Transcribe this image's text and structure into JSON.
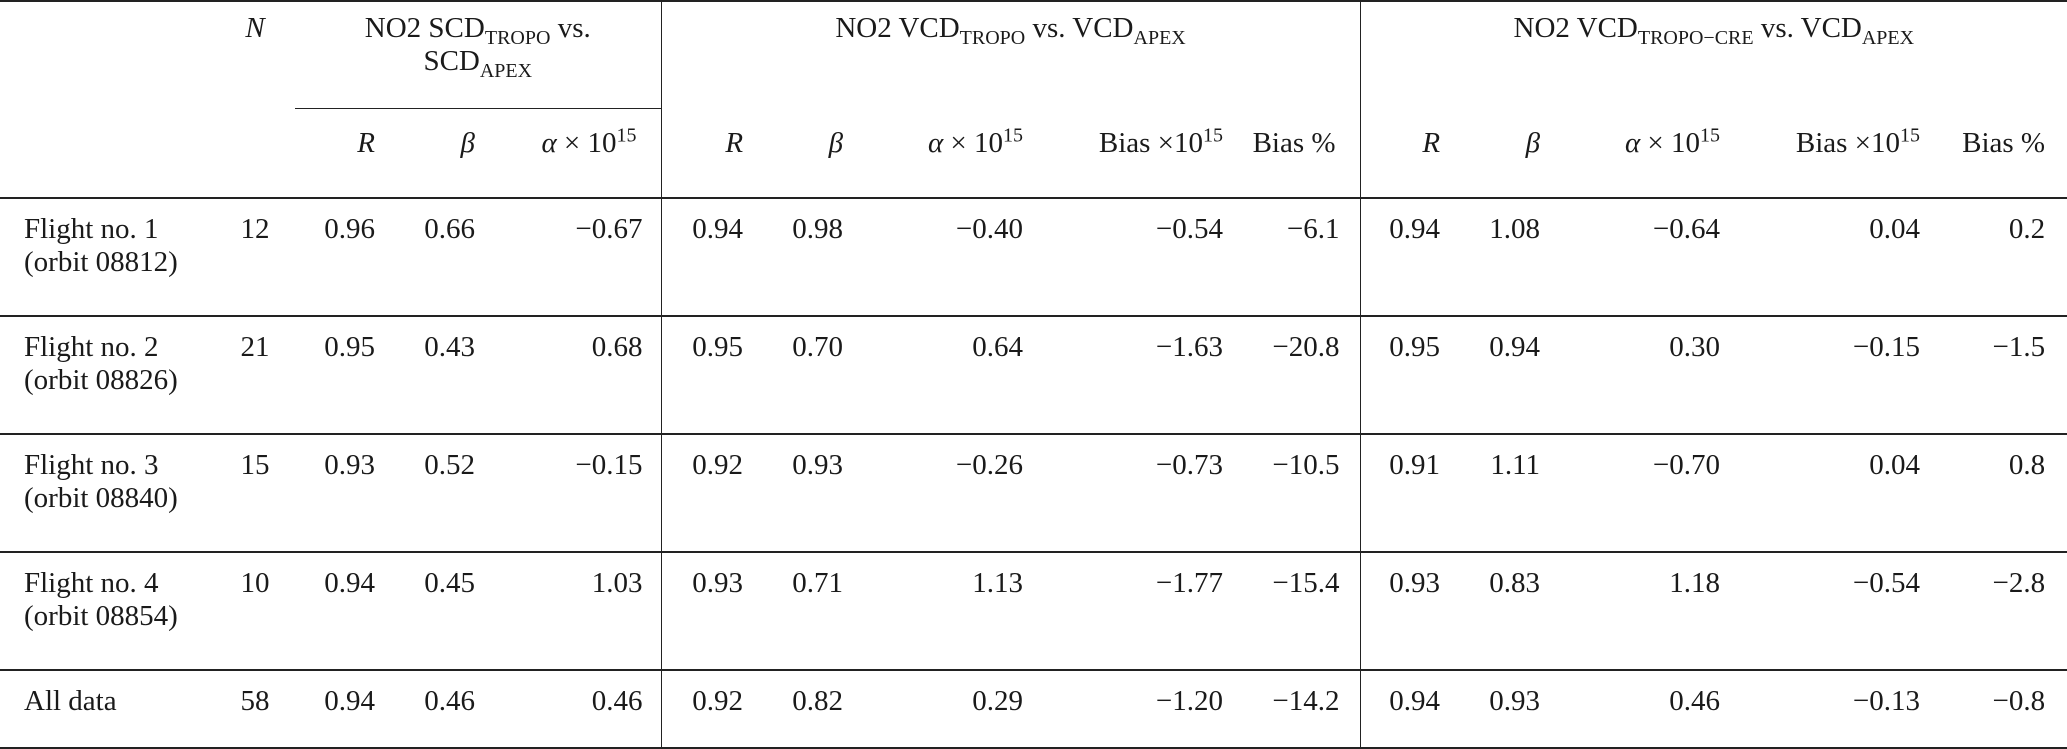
{
  "headers": {
    "n": "N",
    "group1_a": "NO2 SCD",
    "group1_b": "TROPO",
    "group1_c": " vs.",
    "group1_d": "SCD",
    "group1_e": "APEX",
    "group2_a": "NO2 VCD",
    "group2_b": "TROPO",
    "group2_c": " vs. VCD",
    "group2_d": "APEX",
    "group3_a": "NO2 VCD",
    "group3_b": "TROPO−CRE",
    "group3_c": " vs. VCD",
    "group3_d": "APEX",
    "R": "R",
    "beta": "β",
    "alpha": "α × 10",
    "exp": "15",
    "bias": "Bias ×10",
    "biaspct": "Bias %"
  },
  "rows": [
    {
      "label1": "Flight no. 1",
      "label2": "(orbit 08812)",
      "n": "12",
      "g1": [
        "0.96",
        "0.66",
        "−0.67"
      ],
      "g2": [
        "0.94",
        "0.98",
        "−0.40",
        "−0.54",
        "−6.1"
      ],
      "g3": [
        "0.94",
        "1.08",
        "−0.64",
        "0.04",
        "0.2"
      ]
    },
    {
      "label1": "Flight no. 2",
      "label2": "(orbit 08826)",
      "n": "21",
      "g1": [
        "0.95",
        "0.43",
        "0.68"
      ],
      "g2": [
        "0.95",
        "0.70",
        "0.64",
        "−1.63",
        "−20.8"
      ],
      "g3": [
        "0.95",
        "0.94",
        "0.30",
        "−0.15",
        "−1.5"
      ]
    },
    {
      "label1": "Flight no. 3",
      "label2": "(orbit 08840)",
      "n": "15",
      "g1": [
        "0.93",
        "0.52",
        "−0.15"
      ],
      "g2": [
        "0.92",
        "0.93",
        "−0.26",
        "−0.73",
        "−10.5"
      ],
      "g3": [
        "0.91",
        "1.11",
        "−0.70",
        "0.04",
        "0.8"
      ]
    },
    {
      "label1": "Flight no. 4",
      "label2": "(orbit 08854)",
      "n": "10",
      "g1": [
        "0.94",
        "0.45",
        "1.03"
      ],
      "g2": [
        "0.93",
        "0.71",
        "1.13",
        "−1.77",
        "−15.4"
      ],
      "g3": [
        "0.93",
        "0.83",
        "1.18",
        "−0.54",
        "−2.8"
      ]
    },
    {
      "label1": "All data",
      "label2": "",
      "n": "58",
      "g1": [
        "0.94",
        "0.46",
        "0.46"
      ],
      "g2": [
        "0.92",
        "0.82",
        "0.29",
        "−1.20",
        "−14.2"
      ],
      "g3": [
        "0.94",
        "0.93",
        "0.46",
        "−0.13",
        "−0.8"
      ]
    }
  ]
}
